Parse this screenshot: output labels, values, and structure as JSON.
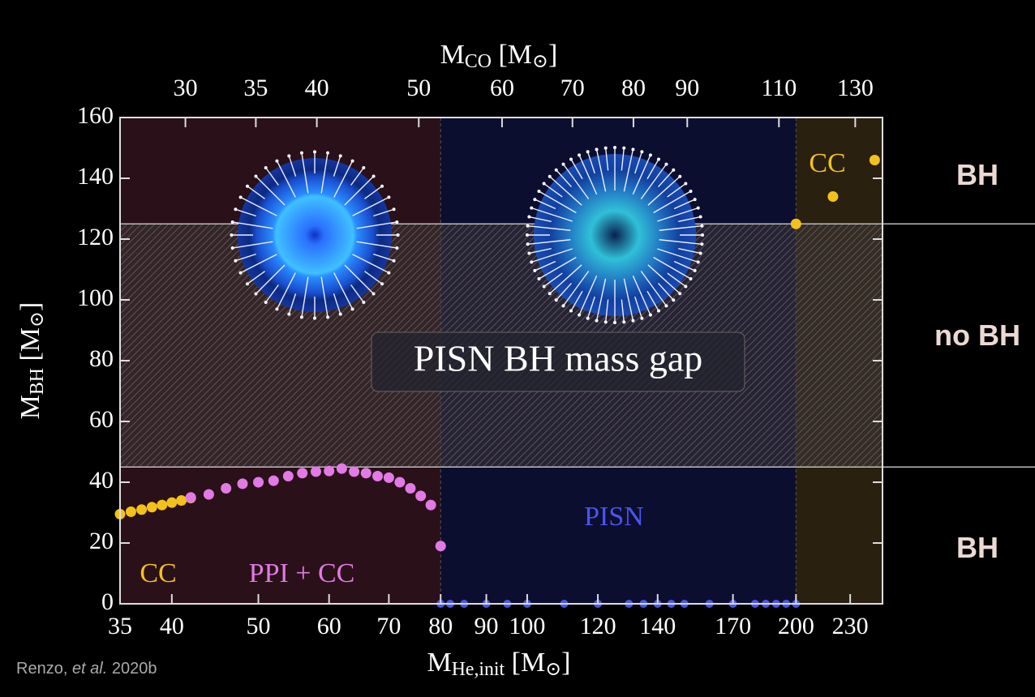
{
  "chart_data": {
    "type": "scatter",
    "xlabel": [
      {
        "text": "M"
      },
      {
        "text": "He,init",
        "sub": true
      },
      {
        "text": " [M"
      },
      {
        "text": "⊙",
        "sub": true
      },
      {
        "text": "]"
      }
    ],
    "x2label": [
      {
        "text": "M"
      },
      {
        "text": "CO",
        "sub": true
      },
      {
        "text": " [M"
      },
      {
        "text": "⊙",
        "sub": true
      },
      {
        "text": "]"
      }
    ],
    "ylabel": [
      {
        "text": "M"
      },
      {
        "text": "BH",
        "sub": true
      },
      {
        "text": " [M"
      },
      {
        "text": "⊙",
        "sub": true
      },
      {
        "text": "]"
      }
    ],
    "xscale": "log",
    "xlim": [
      35,
      250
    ],
    "xticks": [
      35,
      40,
      50,
      60,
      70,
      80,
      90,
      100,
      120,
      140,
      170,
      200,
      230
    ],
    "x2scale": "log",
    "x2lim": [
      26,
      138
    ],
    "x2ticks": [
      30,
      35,
      40,
      50,
      60,
      70,
      80,
      90,
      110,
      130
    ],
    "ylim": [
      0,
      160
    ],
    "yticks": [
      0,
      20,
      40,
      60,
      80,
      100,
      120,
      140,
      160
    ],
    "regions": [
      {
        "x": [
          35,
          80
        ],
        "color": "#2a1018"
      },
      {
        "x": [
          80,
          200
        ],
        "color": "#0c0e30"
      },
      {
        "x": [
          200,
          250
        ],
        "color": "#2a2010"
      }
    ],
    "mass_gap": {
      "label": "PISN BH mass gap",
      "y": [
        45,
        125
      ]
    },
    "series": [
      {
        "color": "#f2c21b",
        "x": [
          35,
          36,
          37,
          38,
          39,
          40,
          41,
          42
        ],
        "values": [
          29.5,
          30.3,
          31,
          31.8,
          32.5,
          33.3,
          34,
          34.8
        ]
      },
      {
        "color": "#e27ae6",
        "x": [
          42,
          44,
          46,
          48,
          50,
          52,
          54,
          56,
          58,
          60,
          62,
          64,
          66,
          68,
          70,
          72,
          74,
          76,
          78,
          80
        ],
        "values": [
          35,
          36,
          38,
          39.5,
          40,
          40.5,
          42,
          43,
          43.5,
          43.7,
          44.5,
          43.5,
          43,
          42,
          41.5,
          40,
          38,
          35.5,
          32.5,
          19
        ]
      },
      {
        "color": "#4a55f0",
        "x": [
          80,
          82,
          85,
          90,
          95,
          100,
          110,
          120,
          130,
          135,
          140,
          145,
          150,
          160,
          170,
          180,
          185,
          190,
          195,
          200
        ],
        "values": [
          0,
          0,
          0,
          0,
          0,
          0,
          0,
          0,
          0,
          0,
          0,
          0,
          0,
          0,
          0,
          0,
          0,
          0,
          0,
          0
        ]
      },
      {
        "color": "#f2c21b",
        "x": [
          200,
          220,
          245
        ],
        "values": [
          125,
          134,
          146
        ]
      }
    ],
    "annotations": [
      {
        "text": "CC",
        "color": "#f2c21b"
      },
      {
        "text": "PPI + CC",
        "color": "#e27ae6"
      },
      {
        "text": "PISN",
        "color": "#4a55f0"
      },
      {
        "text": "CC",
        "color": "#f2c21b"
      }
    ],
    "side_labels": [
      "BH",
      "no BH",
      "BH"
    ],
    "credit": [
      {
        "text": "Renzo, "
      },
      {
        "text": "et al.",
        "italic": true
      },
      {
        "text": " 2020b"
      }
    ]
  }
}
